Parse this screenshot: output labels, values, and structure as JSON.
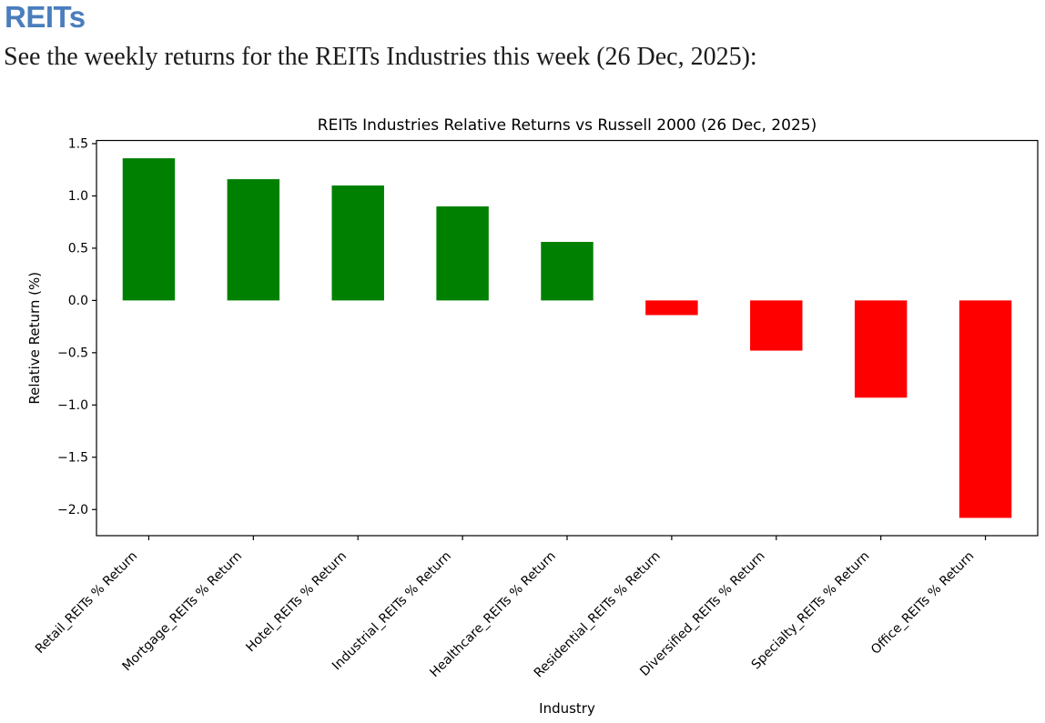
{
  "page": {
    "heading": "REITs",
    "description": "See the weekly returns for the REITs Industries this week (26 Dec, 2025):"
  },
  "colors": {
    "heading_accent": "#4a7ebc",
    "body_text": "#1c1c1c",
    "axis": "#000000",
    "positive_bar": "#008000",
    "negative_bar": "#ff0000"
  },
  "chart_data": {
    "type": "bar",
    "title": "REITs Industries Relative Returns vs Russell 2000 (26 Dec, 2025)",
    "xlabel": "Industry",
    "ylabel": "Relative Return (%)",
    "categories": [
      "Retail_REITs % Return",
      "Mortgage_REITs % Return",
      "Hotel_REITs % Return",
      "Industrial_REITs % Return",
      "Healthcare_REITs % Return",
      "Residential_REITs % Return",
      "Diversified_REITs % Return",
      "Specialty_REITs % Return",
      "Office_REITs % Return"
    ],
    "values": [
      1.36,
      1.16,
      1.1,
      0.9,
      0.56,
      -0.14,
      -0.48,
      -0.93,
      -2.08
    ],
    "ylim": [
      -2.25,
      1.53
    ],
    "yticks": [
      1.5,
      1.0,
      0.5,
      0.0,
      -0.5,
      -1.0,
      -1.5,
      -2.0
    ],
    "positive_color": "#008000",
    "negative_color": "#ff0000",
    "bar_width_fraction": 0.5,
    "x_tick_rotation": 45,
    "grid": false,
    "legend": null
  }
}
